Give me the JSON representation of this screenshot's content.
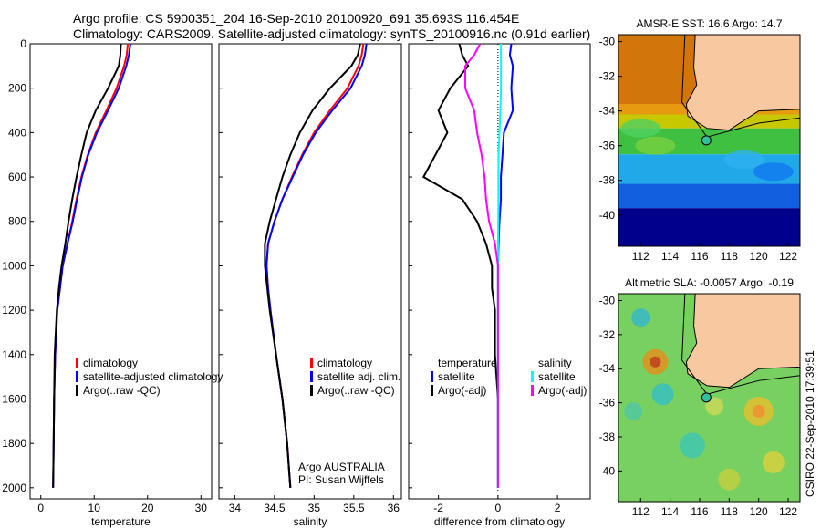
{
  "title": {
    "line1": "Argo profile: CS 5900351_204 16-Sep-2010 20100920_691 35.693S 116.454E",
    "line2": "Climatology: CARS2009. Satellite-adjusted climatology: synTS_20100916.nc (0.91d earlier)"
  },
  "colors": {
    "clim": "#ff0000",
    "sat": "#0000ff",
    "argo": "#000000",
    "sal_sat": "#00ffff",
    "sal_argo": "#ff00ff"
  },
  "chart_data": [
    {
      "type": "line",
      "xlabel": "temperature",
      "ylabel": "",
      "xlim": [
        -2,
        32
      ],
      "ylim": [
        2050,
        0
      ],
      "xticks": [
        0,
        10,
        20,
        30
      ],
      "yticks": [
        0,
        200,
        400,
        600,
        800,
        1000,
        1200,
        1400,
        1600,
        1800,
        2000
      ],
      "legend": [
        "climatology",
        "satellite-adjusted climatology",
        "Argo(..raw -QC)"
      ],
      "legend_placement": "center-right",
      "depth": [
        0,
        50,
        100,
        200,
        300,
        400,
        500,
        600,
        700,
        800,
        900,
        1000,
        1100,
        1200,
        1400,
        1600,
        1800,
        2000
      ],
      "series": [
        {
          "name": "climatology",
          "color": "clim",
          "values": [
            16.3,
            16.1,
            15.6,
            14.2,
            12.3,
            10.3,
            8.8,
            7.6,
            6.7,
            5.9,
            5.0,
            4.1,
            3.6,
            3.1,
            2.7,
            2.5,
            2.4,
            2.3
          ]
        },
        {
          "name": "satellite-adjusted climatology",
          "color": "sat",
          "values": [
            16.8,
            16.5,
            16.0,
            14.6,
            12.6,
            10.5,
            8.9,
            7.7,
            6.8,
            6.0,
            5.0,
            4.1,
            3.6,
            3.1,
            2.7,
            2.5,
            2.4,
            2.3
          ]
        },
        {
          "name": "Argo(..raw -QC)",
          "color": "argo",
          "values": [
            15.0,
            14.9,
            14.6,
            12.6,
            10.3,
            8.6,
            7.6,
            6.7,
            5.9,
            5.2,
            4.6,
            3.9,
            3.4,
            3.0,
            2.6,
            2.5,
            2.4,
            2.3
          ]
        }
      ]
    },
    {
      "type": "line",
      "xlabel": "salinity",
      "xlim": [
        33.8,
        36.1
      ],
      "ylim": [
        2050,
        0
      ],
      "xticks": [
        34,
        34.5,
        35,
        35.5,
        36
      ],
      "legend": [
        "climatology",
        "satellite adj. clim.",
        "Argo(..raw -QC)"
      ],
      "legend_placement": "center-right",
      "annotation": [
        "Argo AUSTRALIA",
        "PI: Susan Wijffels"
      ],
      "depth": [
        0,
        50,
        100,
        200,
        300,
        400,
        500,
        600,
        700,
        800,
        900,
        1000,
        1100,
        1200,
        1400,
        1600,
        1800,
        2000
      ],
      "series": [
        {
          "name": "climatology",
          "color": "clim",
          "values": [
            35.62,
            35.6,
            35.56,
            35.42,
            35.2,
            35.0,
            34.85,
            34.72,
            34.6,
            34.5,
            34.42,
            34.4,
            34.42,
            34.45,
            34.52,
            34.6,
            34.66,
            34.7
          ]
        },
        {
          "name": "satellite adj. clim.",
          "color": "sat",
          "values": [
            35.66,
            35.64,
            35.6,
            35.46,
            35.23,
            35.02,
            34.86,
            34.73,
            34.6,
            34.5,
            34.42,
            34.4,
            34.42,
            34.45,
            34.52,
            34.6,
            34.66,
            34.7
          ]
        },
        {
          "name": "Argo(..raw -QC)",
          "color": "argo",
          "values": [
            35.58,
            35.55,
            35.47,
            35.2,
            34.98,
            34.82,
            34.7,
            34.6,
            34.52,
            34.44,
            34.38,
            34.38,
            34.41,
            34.44,
            34.52,
            34.6,
            34.66,
            34.7
          ]
        }
      ]
    },
    {
      "type": "line",
      "xlabel": "difference from climatology",
      "xlim": [
        -3,
        3.1
      ],
      "ylim": [
        2050,
        0
      ],
      "xticks": [
        -2,
        0,
        2
      ],
      "legend": [
        "temperature",
        "satellite",
        "Argo(-adj)",
        "salinity",
        "satellite",
        "Argo(-adj)"
      ],
      "legend_placement": "center",
      "depth": [
        0,
        50,
        100,
        200,
        300,
        400,
        500,
        600,
        700,
        800,
        900,
        1000,
        1100,
        1200,
        1400,
        1600,
        1800,
        2000
      ],
      "series": [
        {
          "name": "temperature satellite",
          "color": "sat",
          "values": [
            0.45,
            0.4,
            0.5,
            0.45,
            0.5,
            0.2,
            0.15,
            0.1,
            0.1,
            0.05,
            0.02,
            0.0,
            0.0,
            0.0,
            0.0,
            0.0,
            0.0,
            0.0
          ]
        },
        {
          "name": "temperature Argo(-adj)",
          "color": "argo",
          "values": [
            -1.3,
            -1.2,
            -1.0,
            -1.6,
            -2.0,
            -1.7,
            -2.1,
            -2.5,
            -1.2,
            -0.7,
            -0.4,
            -0.2,
            -0.2,
            -0.1,
            -0.1,
            0.0,
            0.0,
            0.0
          ]
        },
        {
          "name": "salinity satellite",
          "color": "sal_sat",
          "values": [
            0.1,
            0.1,
            0.1,
            0.1,
            0.08,
            0.05,
            0.02,
            0.02,
            0.02,
            0.01,
            0.0,
            0.0,
            0.0,
            0.0,
            0.0,
            0.0,
            0.0,
            0.0
          ]
        },
        {
          "name": "salinity Argo(-adj)",
          "color": "sal_argo",
          "values": [
            -0.6,
            -0.8,
            -1.1,
            -1.1,
            -0.8,
            -0.7,
            -0.55,
            -0.45,
            -0.4,
            -0.3,
            -0.1,
            0.0,
            0.0,
            0.0,
            0.0,
            0.0,
            0.0,
            0.0
          ]
        }
      ]
    }
  ],
  "maps": [
    {
      "title": "AMSR-E SST: 16.6 Argo: 14.7",
      "lat_ticks": [
        -30,
        -32,
        -34,
        -36,
        -38,
        -40
      ],
      "lon_ticks": [
        112,
        114,
        116,
        118,
        120,
        122
      ],
      "marker": {
        "lat": -35.693,
        "lon": 116.454
      },
      "type": "sst"
    },
    {
      "title": "Altimetric SLA: -0.0057 Argo: -0.19",
      "lat_ticks": [
        -30,
        -32,
        -34,
        -36,
        -38,
        -40
      ],
      "lon_ticks": [
        112,
        114,
        116,
        118,
        120,
        122
      ],
      "marker": {
        "lat": -35.693,
        "lon": 116.454
      },
      "type": "sla"
    }
  ],
  "footer": "CSIRO 22-Sep-2010 17:39:51"
}
